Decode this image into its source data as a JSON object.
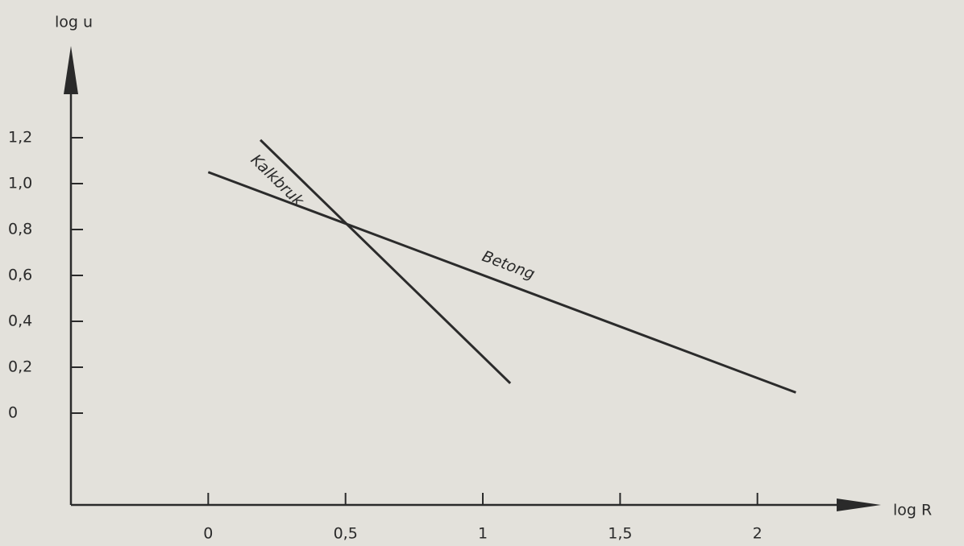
{
  "chart_data": {
    "type": "line",
    "x_label": "log R",
    "y_label": "log u",
    "series": [
      {
        "name": "Kalkbruk",
        "color": "#2b2b2b",
        "x": [
          0.19,
          1.1
        ],
        "values": [
          1.19,
          0.13
        ]
      },
      {
        "name": "Betong",
        "color": "#2b2b2b",
        "x": [
          0,
          2.14
        ],
        "values": [
          1.05,
          0.09
        ]
      }
    ],
    "xlim": [
      -0.5,
      2.45
    ],
    "ylim": [
      -0.4,
      1.6
    ],
    "xticks": [
      0,
      {
        "value": 0.5,
        "label": "0,5"
      },
      1,
      {
        "value": 1.5,
        "label": "1,5"
      },
      2
    ],
    "yticks": [
      0,
      {
        "value": 0.2,
        "label": "0,2"
      },
      {
        "value": 0.4,
        "label": "0,4"
      },
      {
        "value": 0.6,
        "label": "0,6"
      },
      {
        "value": 0.8,
        "label": "0,8"
      },
      {
        "value": 1,
        "label": "1,0"
      },
      {
        "value": 1.2,
        "label": "1,2"
      }
    ],
    "grid": false
  }
}
